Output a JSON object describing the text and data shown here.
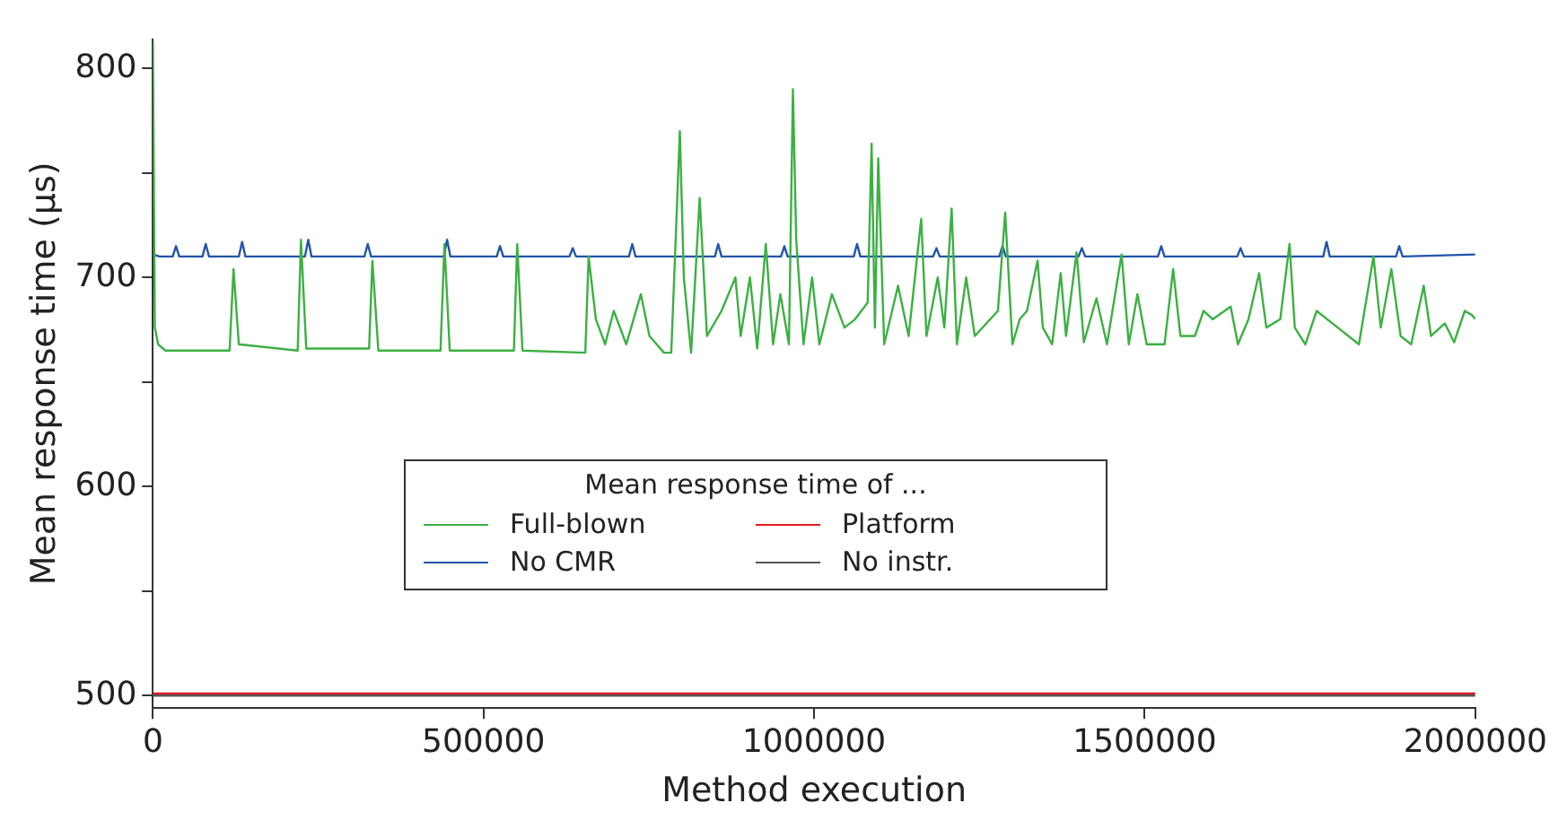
{
  "chart_data": {
    "type": "line",
    "xlabel": "Method execution",
    "ylabel": "Mean response time (µs)",
    "legend_title": "Mean response time of ...",
    "legend": "bottom",
    "grid": false,
    "marker": "none",
    "line_style": "solid",
    "xlim": [
      0,
      2000000
    ],
    "xticks": [
      0,
      500000,
      1000000,
      1500000,
      2000000
    ],
    "ylim": [
      494,
      814
    ],
    "yticks": [
      500,
      {
        "value": 550,
        "label": null
      },
      600,
      {
        "value": 650,
        "label": null
      },
      700,
      {
        "value": 750,
        "label": null
      },
      800
    ],
    "series": [
      {
        "name": "Full-blown",
        "color": "#3cb043",
        "x": [
          0,
          3000,
          8000,
          19000,
          116000,
          122000,
          130000,
          219000,
          224000,
          232000,
          327000,
          332000,
          341000,
          435000,
          441000,
          449000,
          546000,
          551000,
          559000,
          654000,
          659000,
          670000,
          684000,
          697000,
          716000,
          738000,
          751000,
          773000,
          784000,
          797000,
          803000,
          814000,
          827000,
          838000,
          860000,
          881000,
          889000,
          903000,
          914000,
          927000,
          938000,
          949000,
          962000,
          968000,
          973000,
          984000,
          997000,
          1008000,
          1027000,
          1046000,
          1062000,
          1081000,
          1087000,
          1092000,
          1097000,
          1106000,
          1127000,
          1143000,
          1162000,
          1170000,
          1187000,
          1197000,
          1208000,
          1216000,
          1230000,
          1243000,
          1278000,
          1289000,
          1300000,
          1311000,
          1322000,
          1338000,
          1346000,
          1360000,
          1373000,
          1381000,
          1397000,
          1408000,
          1427000,
          1443000,
          1465000,
          1476000,
          1489000,
          1503000,
          1530000,
          1543000,
          1554000,
          1576000,
          1589000,
          1603000,
          1630000,
          1641000,
          1657000,
          1673000,
          1684000,
          1705000,
          1719000,
          1727000,
          1743000,
          1760000,
          1792000,
          1824000,
          1846000,
          1857000,
          1873000,
          1887000,
          1903000,
          1922000,
          1933000,
          1954000,
          1968000,
          1984000,
          1995000,
          2000000
        ],
        "values": [
          813,
          676,
          668,
          665,
          665,
          704,
          668,
          665,
          718,
          666,
          666,
          708,
          665,
          665,
          716,
          665,
          665,
          716,
          665,
          664,
          710,
          680,
          668,
          684,
          668,
          692,
          672,
          664,
          664,
          770,
          700,
          664,
          738,
          672,
          684,
          700,
          672,
          700,
          666,
          716,
          668,
          692,
          668,
          790,
          718,
          668,
          700,
          668,
          692,
          676,
          680,
          688,
          764,
          676,
          757,
          668,
          696,
          672,
          728,
          672,
          700,
          676,
          733,
          668,
          700,
          672,
          684,
          731,
          668,
          680,
          684,
          708,
          676,
          668,
          702,
          672,
          712,
          669,
          690,
          668,
          711,
          668,
          692,
          668,
          668,
          704,
          672,
          672,
          684,
          680,
          686,
          668,
          680,
          702,
          676,
          680,
          716,
          676,
          668,
          684,
          676,
          668,
          710,
          676,
          704,
          672,
          668,
          696,
          672,
          678,
          669,
          684,
          682,
          680
        ]
      },
      {
        "name": "No CMR",
        "color": "#2255aa",
        "x": [
          0,
          10000,
          30000,
          35000,
          40000,
          75000,
          80000,
          85000,
          130000,
          135000,
          140000,
          230000,
          235000,
          240000,
          320000,
          325000,
          330000,
          440000,
          445000,
          450000,
          520000,
          525000,
          530000,
          630000,
          635000,
          640000,
          720000,
          725000,
          730000,
          850000,
          855000,
          860000,
          950000,
          955000,
          960000,
          1060000,
          1065000,
          1070000,
          1180000,
          1185000,
          1190000,
          1280000,
          1285000,
          1290000,
          1400000,
          1405000,
          1410000,
          1520000,
          1525000,
          1530000,
          1640000,
          1645000,
          1650000,
          1770000,
          1775000,
          1780000,
          1880000,
          1885000,
          1890000,
          2000000
        ],
        "values": [
          711,
          710,
          710,
          715,
          710,
          710,
          716,
          710,
          710,
          717,
          710,
          710,
          718,
          710,
          710,
          716,
          710,
          710,
          718,
          710,
          710,
          715,
          710,
          710,
          714,
          710,
          710,
          716,
          710,
          710,
          716,
          710,
          710,
          715,
          710,
          710,
          716,
          710,
          710,
          714,
          710,
          710,
          715,
          710,
          710,
          714,
          710,
          710,
          715,
          710,
          710,
          714,
          710,
          710,
          717,
          710,
          710,
          715,
          710,
          711
        ]
      },
      {
        "name": "Platform",
        "color": "#e41a1c",
        "x": [
          0,
          2000000
        ],
        "values": [
          501,
          501
        ]
      },
      {
        "name": "No instr.",
        "color": "#555555",
        "x": [
          0,
          2000000
        ],
        "values": [
          500,
          500
        ]
      }
    ]
  }
}
